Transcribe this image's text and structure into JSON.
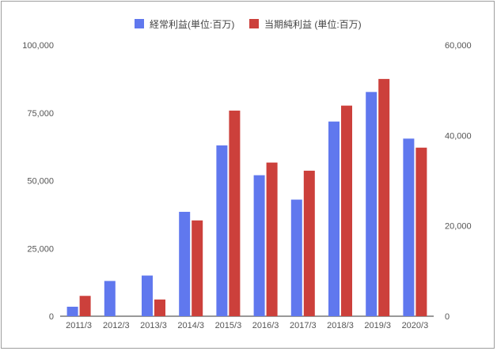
{
  "chart_data": {
    "type": "bar",
    "categories": [
      "2011/3",
      "2012/3",
      "2013/3",
      "2014/3",
      "2015/3",
      "2016/3",
      "2017/3",
      "2018/3",
      "2019/3",
      "2020/3"
    ],
    "series": [
      {
        "name": "経常利益(単位:百万)",
        "axis": "left",
        "color": "#6078ee",
        "values": [
          3500,
          13000,
          15000,
          38500,
          63000,
          52000,
          43000,
          71800,
          82700,
          65500
        ]
      },
      {
        "name": "当期純利益 (単位:百万)",
        "axis": "right",
        "color": "#cc403b",
        "values": [
          4500,
          0,
          3700,
          21200,
          45500,
          34000,
          32200,
          46600,
          52500,
          37300
        ]
      }
    ],
    "y_left": {
      "min": 0,
      "max": 100000,
      "ticks": [
        0,
        25000,
        50000,
        75000,
        100000
      ],
      "tick_labels": [
        "0",
        "25,000",
        "50,000",
        "75,000",
        "100,000"
      ]
    },
    "y_right": {
      "min": 0,
      "max": 60000,
      "ticks": [
        0,
        20000,
        40000,
        60000
      ],
      "tick_labels": [
        "0",
        "20,000",
        "40,000",
        "60,000"
      ]
    },
    "legend_position": "top-center",
    "grid": false
  }
}
